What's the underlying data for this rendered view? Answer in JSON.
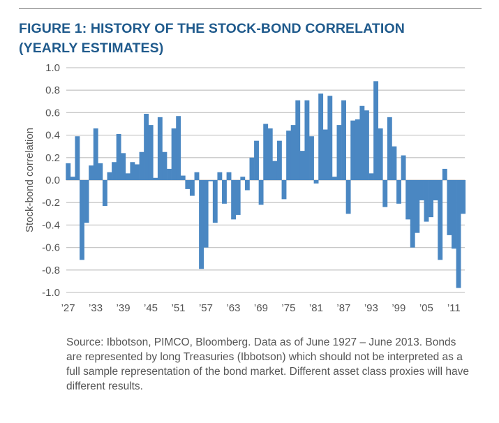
{
  "chart_data": {
    "type": "bar",
    "title": "FIGURE 1: HISTORY OF THE STOCK-BOND CORRELATION (YEARLY ESTIMATES)",
    "title_lines": [
      "FIGURE 1: HISTORY OF THE STOCK-BOND CORRELATION",
      "(YEARLY ESTIMATES)"
    ],
    "xlabel": "",
    "ylabel": "Stock-bond correlation",
    "ylim": [
      -1.0,
      1.0
    ],
    "yticks": [
      "1.0",
      "0.8",
      "0.6",
      "0.4",
      "0.2",
      "0.0",
      "-0.2",
      "-0.4",
      "-0.6",
      "-0.8",
      "-1.0"
    ],
    "xtick_labels": [
      "’27",
      "’33",
      "’39",
      "’45",
      "’51",
      "’57",
      "’63",
      "’69",
      "’75",
      "’81",
      "’87",
      "’93",
      "’99",
      "’05",
      "’11"
    ],
    "grid": true,
    "bar_color": "#4a87c2",
    "title_color": "#1f5a8c",
    "years": [
      1927,
      1928,
      1929,
      1930,
      1931,
      1932,
      1933,
      1934,
      1935,
      1936,
      1937,
      1938,
      1939,
      1940,
      1941,
      1942,
      1943,
      1944,
      1945,
      1946,
      1947,
      1948,
      1949,
      1950,
      1951,
      1952,
      1953,
      1954,
      1955,
      1956,
      1957,
      1958,
      1959,
      1960,
      1961,
      1962,
      1963,
      1964,
      1965,
      1966,
      1967,
      1968,
      1969,
      1970,
      1971,
      1972,
      1973,
      1974,
      1975,
      1976,
      1977,
      1978,
      1979,
      1980,
      1981,
      1982,
      1983,
      1984,
      1985,
      1986,
      1987,
      1988,
      1989,
      1990,
      1991,
      1992,
      1993,
      1994,
      1995,
      1996,
      1997,
      1998,
      1999,
      2000,
      2001,
      2002,
      2003,
      2004,
      2005,
      2006,
      2007,
      2008,
      2009,
      2010,
      2011,
      2012,
      2013
    ],
    "values": [
      0.15,
      0.03,
      0.39,
      -0.71,
      -0.38,
      0.13,
      0.46,
      0.15,
      -0.23,
      0.07,
      0.16,
      0.41,
      0.24,
      0.06,
      0.16,
      0.14,
      0.25,
      0.59,
      0.49,
      0.02,
      0.56,
      0.25,
      0.1,
      0.46,
      0.57,
      0.04,
      -0.08,
      -0.14,
      0.07,
      -0.79,
      -0.6,
      -0.01,
      -0.38,
      0.07,
      -0.21,
      0.07,
      -0.35,
      -0.31,
      0.03,
      -0.09,
      0.2,
      0.35,
      -0.22,
      0.5,
      0.46,
      0.17,
      0.35,
      -0.17,
      0.44,
      0.49,
      0.71,
      0.26,
      0.71,
      0.39,
      -0.03,
      0.77,
      0.45,
      0.75,
      0.03,
      0.49,
      0.71,
      -0.3,
      0.53,
      0.54,
      0.66,
      0.62,
      0.06,
      0.88,
      0.46,
      -0.24,
      0.56,
      0.3,
      -0.21,
      0.22,
      -0.35,
      -0.6,
      -0.47,
      -0.18,
      -0.37,
      -0.33,
      -0.18,
      -0.71,
      0.1,
      -0.49,
      -0.61,
      -0.96,
      -0.3
    ]
  },
  "source_note": "Source: Ibbotson, PIMCO, Bloomberg. Data as of June 1927 – June 2013. Bonds are represented by long Treasuries (Ibbotson) which should not be interpreted as a full sample representation of the bond market. Different asset class proxies will have different results."
}
